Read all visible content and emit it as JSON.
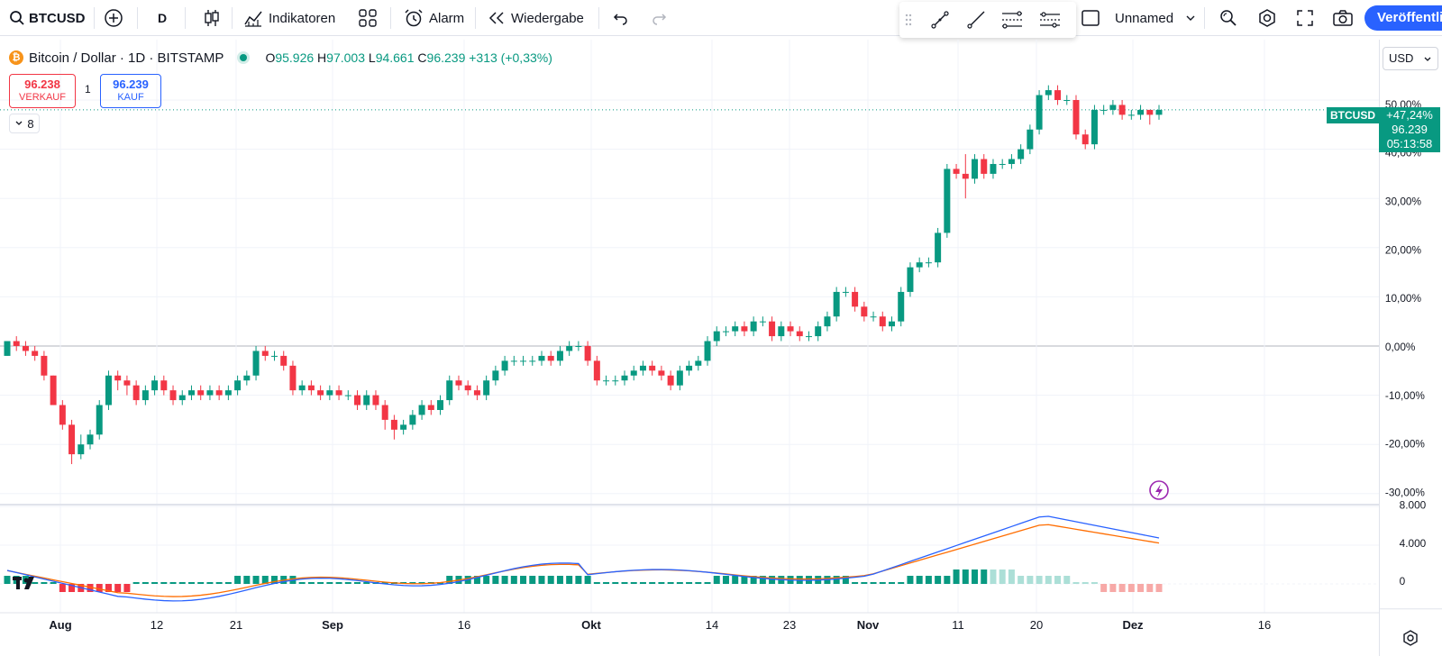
{
  "toolbar": {
    "symbol": "BTCUSD",
    "interval": "D",
    "indicators_label": "Indikatoren",
    "alarm_label": "Alarm",
    "replay_label": "Wiedergabe",
    "layout_name": "Unnamed",
    "publish_label": "Veröffentlichen"
  },
  "legend": {
    "title": "Bitcoin / Dollar · 1D · BITSTAMP",
    "o_key": "O",
    "o_val": "95.926",
    "h_key": "H",
    "h_val": "97.003",
    "l_key": "L",
    "l_val": "94.661",
    "c_key": "C",
    "c_val": "96.239",
    "change": "+313 (+0,33%)"
  },
  "trade": {
    "sell_price": "96.238",
    "sell_label": "VERKAUF",
    "spread": "1",
    "buy_price": "96.239",
    "buy_label": "KAUF"
  },
  "collapse_count": "8",
  "currency": "USD",
  "price_label": {
    "symbol": "BTCUSD",
    "change": "+47,24%",
    "price": "96.239",
    "countdown": "05:13:58"
  },
  "colors": {
    "up": "#089981",
    "down": "#f23645",
    "accent": "#2962ff"
  },
  "chart_data": {
    "type": "candlestick",
    "percent_axis_labels": [
      "50,00%",
      "40,00%",
      "30,00%",
      "20,00%",
      "10,00%",
      "0,00%",
      "-10,00%",
      "-20,00%",
      "-30,00%"
    ],
    "macd_axis_labels": [
      "8.000",
      "4.000",
      "0"
    ],
    "x_labels": [
      "Aug",
      "12",
      "21",
      "Sep",
      "16",
      "Okt",
      "14",
      "23",
      "Nov",
      "11",
      "20",
      "Dez",
      "16"
    ],
    "candles_percent": [
      [
        -2,
        1,
        -2,
        1
      ],
      [
        1,
        0,
        -1,
        2
      ],
      [
        0,
        -1,
        -2,
        1
      ],
      [
        -1,
        -2,
        -3,
        0
      ],
      [
        -2,
        -6,
        -7,
        -1
      ],
      [
        -6,
        -12,
        -12,
        -6
      ],
      [
        -12,
        -16,
        -17,
        -11
      ],
      [
        -16,
        -22,
        -24,
        -15
      ],
      [
        -22,
        -20,
        -23,
        -18
      ],
      [
        -20,
        -18,
        -21,
        -17
      ],
      [
        -18,
        -12,
        -19,
        -11
      ],
      [
        -12,
        -6,
        -13,
        -5
      ],
      [
        -6,
        -7,
        -9,
        -5
      ],
      [
        -7,
        -8,
        -10,
        -6
      ],
      [
        -8,
        -11,
        -12,
        -7
      ],
      [
        -11,
        -9,
        -12,
        -8
      ],
      [
        -9,
        -7,
        -10,
        -6
      ],
      [
        -7,
        -9,
        -10,
        -6
      ],
      [
        -9,
        -11,
        -12,
        -8
      ],
      [
        -11,
        -10,
        -12,
        -9
      ],
      [
        -10,
        -9,
        -11,
        -8
      ],
      [
        -9,
        -10,
        -11,
        -8
      ],
      [
        -10,
        -9,
        -11,
        -8
      ],
      [
        -9,
        -10,
        -11,
        -8
      ],
      [
        -10,
        -9,
        -11,
        -8
      ],
      [
        -9,
        -7,
        -10,
        -6
      ],
      [
        -7,
        -6,
        -8,
        -5
      ],
      [
        -6,
        -1,
        -7,
        0
      ],
      [
        -1,
        -2,
        -3,
        0
      ],
      [
        -2,
        -2,
        -3,
        -1
      ],
      [
        -2,
        -4,
        -5,
        -1
      ],
      [
        -4,
        -9,
        -10,
        -3
      ],
      [
        -9,
        -8,
        -10,
        -7
      ],
      [
        -8,
        -9,
        -10,
        -7
      ],
      [
        -9,
        -10,
        -11,
        -8
      ],
      [
        -10,
        -9,
        -11,
        -8
      ],
      [
        -9,
        -10,
        -11,
        -8
      ],
      [
        -10,
        -10,
        -11,
        -9
      ],
      [
        -10,
        -12,
        -13,
        -9
      ],
      [
        -12,
        -10,
        -13,
        -9
      ],
      [
        -10,
        -12,
        -13,
        -9
      ],
      [
        -12,
        -15,
        -17,
        -11
      ],
      [
        -15,
        -17,
        -19,
        -14
      ],
      [
        -17,
        -16,
        -18,
        -15
      ],
      [
        -16,
        -14,
        -17,
        -13
      ],
      [
        -14,
        -12,
        -15,
        -11
      ],
      [
        -12,
        -13,
        -14,
        -11
      ],
      [
        -13,
        -11,
        -14,
        -10
      ],
      [
        -11,
        -7,
        -12,
        -6
      ],
      [
        -7,
        -8,
        -9,
        -6
      ],
      [
        -8,
        -9,
        -10,
        -7
      ],
      [
        -9,
        -10,
        -11,
        -8
      ],
      [
        -10,
        -7,
        -11,
        -6
      ],
      [
        -7,
        -5,
        -8,
        -4
      ],
      [
        -5,
        -3,
        -6,
        -2
      ],
      [
        -3,
        -3,
        -4,
        -2
      ],
      [
        -3,
        -3,
        -4,
        -2
      ],
      [
        -3,
        -3,
        -4,
        -2
      ],
      [
        -3,
        -2,
        -4,
        -1
      ],
      [
        -2,
        -3,
        -4,
        -1
      ],
      [
        -3,
        -1,
        -4,
        0
      ],
      [
        -1,
        0,
        -2,
        1
      ],
      [
        0,
        0,
        -1,
        1
      ],
      [
        0,
        -3,
        -4,
        1
      ],
      [
        -3,
        -7,
        -8,
        -2
      ],
      [
        -7,
        -7,
        -8,
        -6
      ],
      [
        -7,
        -7,
        -8,
        -6
      ],
      [
        -7,
        -6,
        -8,
        -5
      ],
      [
        -6,
        -5,
        -7,
        -4
      ],
      [
        -5,
        -4,
        -6,
        -3
      ],
      [
        -4,
        -5,
        -6,
        -3
      ],
      [
        -5,
        -6,
        -7,
        -4
      ],
      [
        -6,
        -8,
        -9,
        -5
      ],
      [
        -8,
        -5,
        -9,
        -4
      ],
      [
        -5,
        -4,
        -6,
        -3
      ],
      [
        -4,
        -3,
        -5,
        -2
      ],
      [
        -3,
        1,
        -4,
        2
      ],
      [
        1,
        3,
        0,
        4
      ],
      [
        3,
        3,
        2,
        4
      ],
      [
        3,
        4,
        2,
        5
      ],
      [
        4,
        3,
        2,
        5
      ],
      [
        3,
        5,
        2,
        6
      ],
      [
        5,
        5,
        4,
        6
      ],
      [
        5,
        2,
        1,
        6
      ],
      [
        2,
        4,
        1,
        5
      ],
      [
        4,
        3,
        2,
        5
      ],
      [
        3,
        2,
        1,
        4
      ],
      [
        2,
        2,
        1,
        3
      ],
      [
        2,
        4,
        1,
        5
      ],
      [
        4,
        6,
        3,
        7
      ],
      [
        6,
        11,
        5,
        12
      ],
      [
        11,
        11,
        10,
        12
      ],
      [
        11,
        8,
        7,
        12
      ],
      [
        8,
        6,
        5,
        9
      ],
      [
        6,
        6,
        5,
        7
      ],
      [
        6,
        4,
        3,
        7
      ],
      [
        4,
        5,
        3,
        6
      ],
      [
        5,
        11,
        4,
        12
      ],
      [
        11,
        16,
        10,
        17
      ],
      [
        16,
        17,
        15,
        18
      ],
      [
        17,
        17,
        16,
        18
      ],
      [
        17,
        23,
        16,
        24
      ],
      [
        23,
        36,
        22,
        37
      ],
      [
        36,
        35,
        34,
        37
      ],
      [
        35,
        34,
        30,
        39
      ],
      [
        34,
        38,
        33,
        39
      ],
      [
        38,
        35,
        34,
        39
      ],
      [
        35,
        37,
        34,
        38
      ],
      [
        37,
        37,
        36,
        38
      ],
      [
        37,
        38,
        36,
        39
      ],
      [
        38,
        40,
        37,
        41
      ],
      [
        40,
        44,
        39,
        45
      ],
      [
        44,
        51,
        43,
        52
      ],
      [
        51,
        52,
        50,
        53
      ],
      [
        52,
        50,
        49,
        53
      ],
      [
        50,
        50,
        49,
        51
      ],
      [
        50,
        43,
        42,
        51
      ],
      [
        43,
        41,
        40,
        44
      ],
      [
        41,
        48,
        40,
        49
      ],
      [
        48,
        48,
        47,
        49
      ],
      [
        48,
        49,
        47,
        50
      ],
      [
        49,
        47,
        46,
        50
      ],
      [
        47,
        47,
        46,
        48
      ],
      [
        47,
        48,
        46,
        49
      ],
      [
        48,
        47,
        45,
        48
      ],
      [
        47,
        48,
        46,
        49
      ]
    ],
    "macd_hist": [
      1,
      1,
      1,
      0,
      0,
      0,
      -1,
      -1,
      -1,
      -1,
      -1,
      -1,
      -1,
      -1,
      0,
      0,
      0,
      0,
      0,
      0,
      0,
      0,
      0,
      0,
      0,
      1,
      1,
      1,
      1,
      1,
      1,
      1,
      0,
      0,
      0,
      0,
      0,
      0,
      0,
      0,
      0,
      0,
      0,
      0,
      0,
      0,
      0,
      0,
      1,
      1,
      1,
      1,
      1,
      1,
      1,
      1,
      1,
      1,
      1,
      1,
      1,
      1,
      1,
      1,
      0,
      0,
      0,
      0,
      0,
      0,
      0,
      0,
      0,
      0,
      0,
      0,
      0,
      1,
      1,
      1,
      1,
      1,
      1,
      1,
      1,
      1,
      1,
      1,
      1,
      1,
      1,
      1,
      0,
      0,
      0,
      0,
      0,
      0,
      1,
      1,
      1,
      1,
      1,
      2,
      2,
      2,
      2,
      2,
      2,
      2,
      1,
      1,
      1,
      1,
      1,
      1,
      0,
      0,
      0,
      -1,
      -1,
      -1,
      -1,
      -1,
      -1,
      -1
    ]
  }
}
